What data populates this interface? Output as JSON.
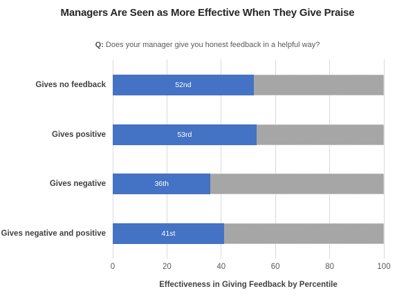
{
  "title": "Managers Are Seen as More Effective When They Give Praise",
  "subtitle": {
    "prefix": "Q:",
    "text": " Does your manager give you honest feedback in a helpful way?"
  },
  "axis_title": "Effectiveness in Giving Feedback by Percentile",
  "colors": {
    "bar_fill": "#4472C4",
    "bar_track": "#A6A6A6",
    "gridline": "#D9D9D9",
    "title": "#262626",
    "subtitle": "#595959",
    "category_label": "#404040",
    "tick_label": "#595959",
    "value_label": "#FFFFFF"
  },
  "chart_data": {
    "type": "bar",
    "orientation": "horizontal",
    "title": "Managers Are Seen as More Effective When They Give Praise",
    "subtitle": "Q: Does your manager give you honest feedback in a helpful way?",
    "xlabel": "Effectiveness in Giving Feedback by Percentile",
    "categories": [
      "Gives no feedback",
      "Gives positive",
      "Gives negative",
      "Gives negative and positive"
    ],
    "values": [
      52,
      53,
      36,
      41
    ],
    "value_labels": [
      "52nd",
      "53rd",
      "36th",
      "41st"
    ],
    "track_full_value": 100,
    "x_ticks": [
      0,
      20,
      40,
      60,
      80,
      100
    ],
    "xlim": [
      0,
      100
    ],
    "grid": "vertical-only",
    "legend": "none"
  }
}
